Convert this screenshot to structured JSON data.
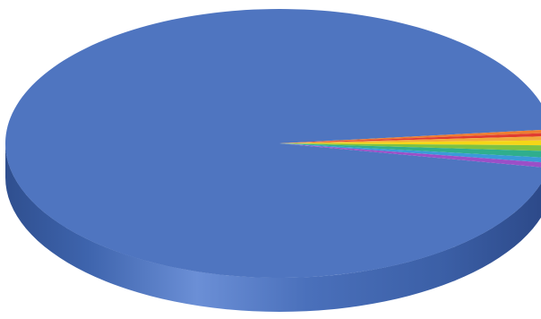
{
  "chart_data": {
    "type": "pie",
    "style": "3d",
    "title": "",
    "legend": "none",
    "data_labels": "none",
    "slices": [
      {
        "value": 95.4,
        "color": "#4f75c0"
      },
      {
        "value": 0.4,
        "color": "#ed7d31"
      },
      {
        "value": 0.4,
        "color": "#e03c31"
      },
      {
        "value": 0.5,
        "color": "#f2a93b"
      },
      {
        "value": 0.6,
        "color": "#f5d617"
      },
      {
        "value": 0.7,
        "color": "#7dc242"
      },
      {
        "value": 0.8,
        "color": "#2fae8e"
      },
      {
        "value": 0.6,
        "color": "#3a9ad9"
      },
      {
        "value": 0.6,
        "color": "#9b4fc7"
      }
    ]
  }
}
